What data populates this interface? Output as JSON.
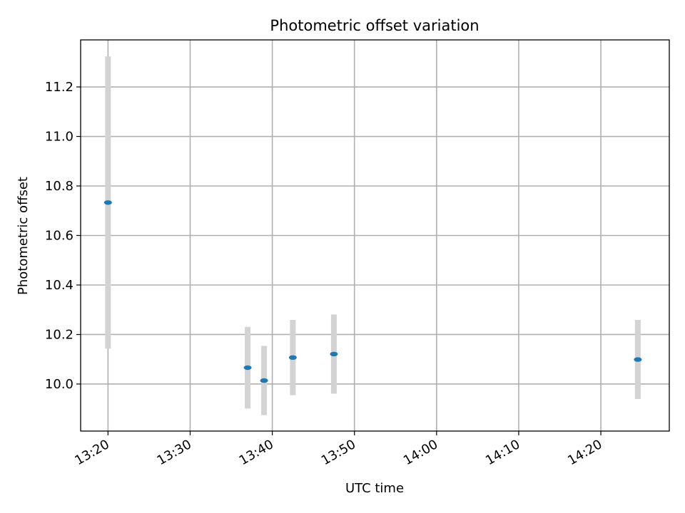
{
  "chart_data": {
    "type": "scatter",
    "title": "Photometric offset variation",
    "xlabel": "UTC time",
    "ylabel": "Photometric offset",
    "x_ticks": [
      "13:20",
      "13:30",
      "13:40",
      "13:50",
      "14:00",
      "14:10",
      "14:20"
    ],
    "y_ticks": [
      "10.0",
      "10.2",
      "10.4",
      "10.6",
      "10.8",
      "11.0",
      "11.2"
    ],
    "xlim": [
      "13:16:40",
      "14:28:20"
    ],
    "ylim": [
      9.81,
      11.39
    ],
    "grid": true,
    "colors": {
      "marker": "#1f77b4",
      "errorbar": "#d3d3d3",
      "grid": "#b0b0b0"
    },
    "points": [
      {
        "x": "13:20:00",
        "y": 10.733,
        "yerr": 0.59
      },
      {
        "x": "13:37:00",
        "y": 10.066,
        "yerr": 0.165
      },
      {
        "x": "13:39:00",
        "y": 10.014,
        "yerr": 0.14
      },
      {
        "x": "13:42:30",
        "y": 10.107,
        "yerr": 0.152
      },
      {
        "x": "13:47:30",
        "y": 10.121,
        "yerr": 0.16
      },
      {
        "x": "14:24:30",
        "y": 10.099,
        "yerr": 0.16
      }
    ]
  }
}
